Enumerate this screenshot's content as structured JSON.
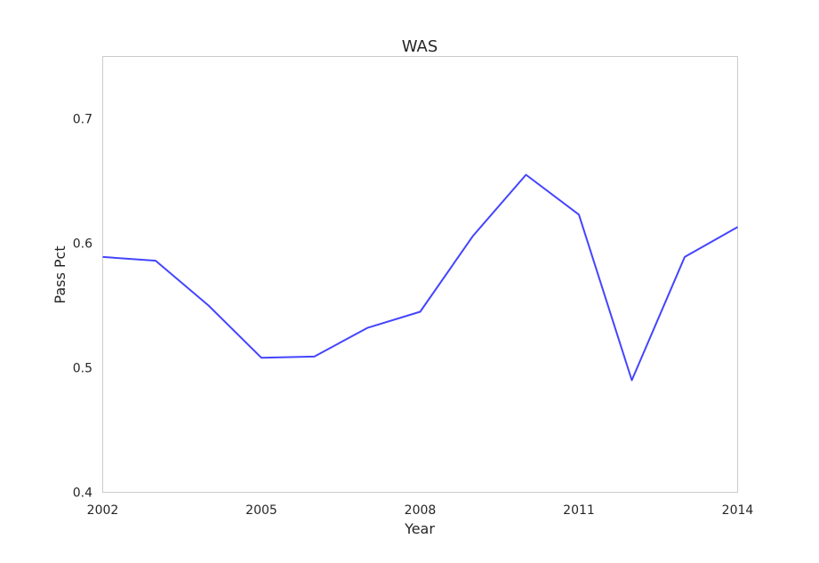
{
  "chart_data": {
    "type": "line",
    "title": "WAS",
    "xlabel": "Year",
    "ylabel": "Pass Pct",
    "xlim": [
      2002,
      2014
    ],
    "ylim": [
      0.4,
      0.75
    ],
    "xticks": [
      "2002",
      "2005",
      "2008",
      "2011",
      "2014"
    ],
    "yticks": [
      "0.4",
      "0.5",
      "0.6",
      "0.7"
    ],
    "grid": false,
    "series": [
      {
        "color": "#4444ff",
        "x": [
          2002,
          2003,
          2004,
          2005,
          2006,
          2007,
          2008,
          2009,
          2010,
          2011,
          2012,
          2013,
          2014
        ],
        "y": [
          0.589,
          0.586,
          0.55,
          0.508,
          0.509,
          0.532,
          0.545,
          0.606,
          0.655,
          0.623,
          0.49,
          0.589,
          0.613
        ]
      }
    ]
  }
}
